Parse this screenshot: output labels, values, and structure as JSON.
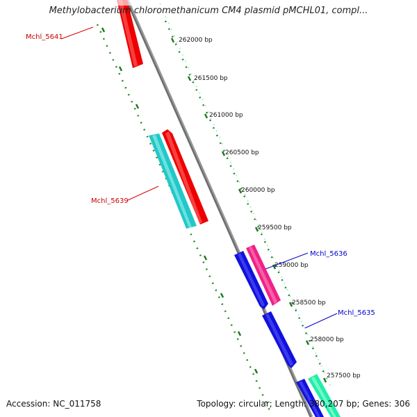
{
  "header": {
    "title": "Methylobacterium chloromethanicum CM4 plasmid pMCHL01, compl..."
  },
  "footer": {
    "accession": "Accession: NC_011758",
    "summary": "Topology: circular; Length: 380,207 bp; Genes: 306"
  },
  "scale": {
    "ticks": [
      "262000 bp",
      "261500 bp",
      "261000 bp",
      "260500 bp",
      "260000 bp",
      "259500 bp",
      "259000 bp",
      "258500 bp",
      "258000 bp",
      "257500 bp"
    ]
  },
  "genes": [
    {
      "name": "Mchl_5641",
      "strand": "forward",
      "color": "#ee0000"
    },
    {
      "name": "Mchl_5639",
      "strand": "forward",
      "color": "#ee0000"
    },
    {
      "name": "",
      "strand": "reverse",
      "color": "#22c8c8"
    },
    {
      "name": "Mchl_5636",
      "strand": "forward",
      "color": "#ee2288"
    },
    {
      "name": "",
      "strand": "reverse",
      "color": "#1111dd"
    },
    {
      "name": "Mchl_5635",
      "strand": "reverse",
      "color": "#1111dd"
    },
    {
      "name": "",
      "strand": "forward",
      "color": "#22eeaa"
    },
    {
      "name": "",
      "strand": "reverse",
      "color": "#1111dd"
    }
  ],
  "colors": {
    "backbone": "#777777",
    "forward_label": "#cc0000",
    "reverse_label": "#0000cc",
    "dotted_track": "#228822",
    "outer_track": "#99dddd"
  }
}
